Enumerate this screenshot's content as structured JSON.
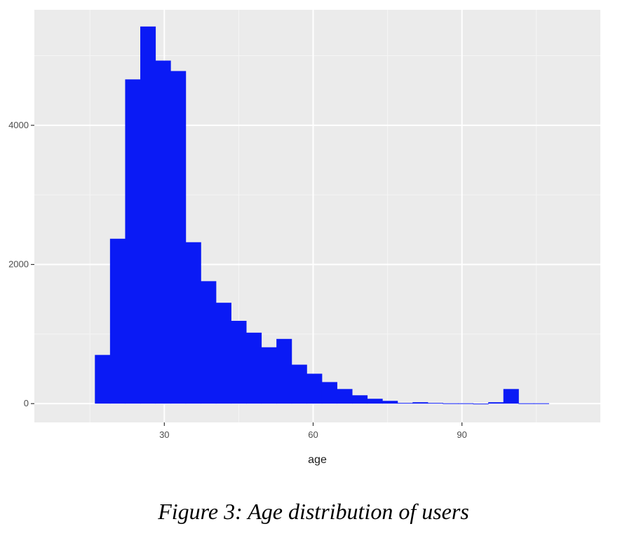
{
  "caption": "Figure 3: Age distribution of users",
  "colors": {
    "bar_fill": "#0a1af5",
    "panel_background": "#ebebeb",
    "grid_major": "#ffffff",
    "grid_minor": "#f5f5f5"
  },
  "chart_data": {
    "type": "bar",
    "histogram": true,
    "title": "",
    "xlabel": "age",
    "ylabel": "",
    "bin_width": 3.05,
    "bin_start": 16,
    "values": [
      700,
      2370,
      4660,
      5420,
      4930,
      4780,
      2320,
      1760,
      1450,
      1190,
      1020,
      810,
      930,
      560,
      430,
      310,
      210,
      120,
      70,
      40,
      10,
      20,
      10,
      5,
      5,
      -10,
      20,
      210,
      5,
      5
    ],
    "xlim": [
      3.8,
      117.9
    ],
    "ylim": [
      -270,
      5660
    ],
    "x_ticks": [
      30,
      60,
      90
    ],
    "y_ticks": [
      0,
      2000,
      4000
    ],
    "grid": true
  }
}
